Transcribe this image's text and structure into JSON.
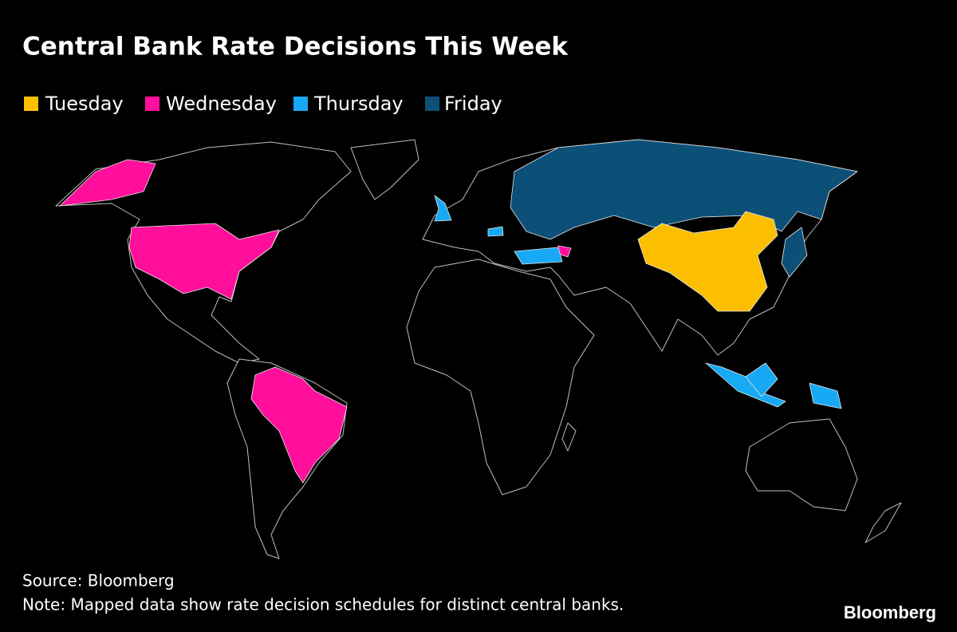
{
  "header": {
    "title": "Central Bank Rate Decisions This Week"
  },
  "legend": {
    "items": [
      {
        "name": "Tuesday",
        "color": "#fcbf00"
      },
      {
        "name": "Wednesday",
        "color": "#ff0f9b"
      },
      {
        "name": "Thursday",
        "color": "#18a9f5"
      },
      {
        "name": "Friday",
        "color": "#0c5078"
      }
    ]
  },
  "footer": {
    "source": "Source: Bloomberg",
    "note": "Note: Mapped data show rate decision schedules for distinct central banks.",
    "brand": "Bloomberg"
  }
}
